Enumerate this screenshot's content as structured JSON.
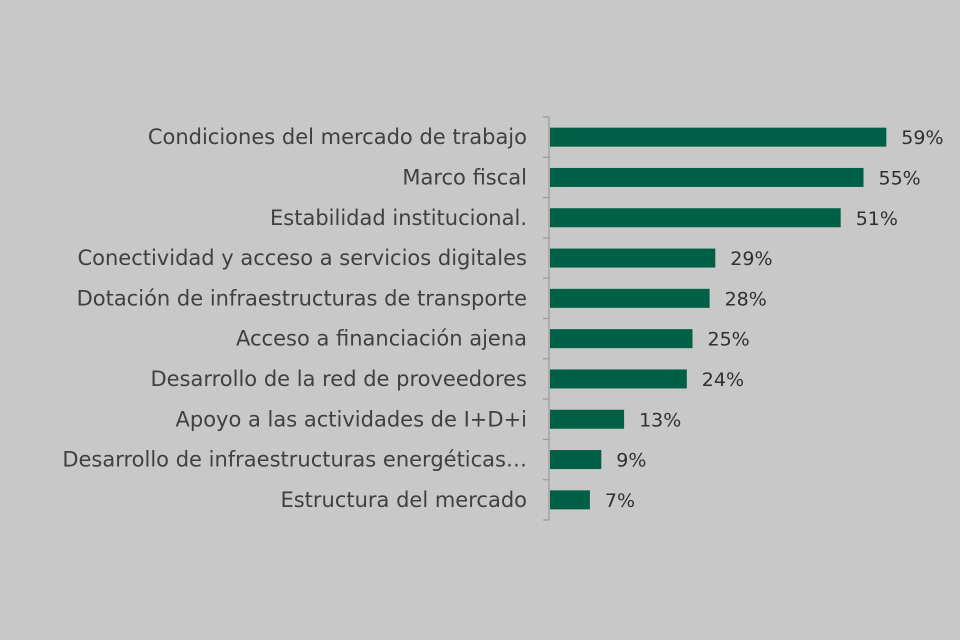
{
  "chart_data": {
    "type": "bar",
    "orientation": "horizontal",
    "categories": [
      "Condiciones del mercado de trabajo",
      "Marco fiscal",
      "Estabilidad institucional.",
      "Conectividad y acceso a servicios digitales",
      "Dotación de infraestructuras de transporte",
      "Acceso a financiación ajena",
      "Desarrollo de la red de proveedores",
      "Apoyo a las actividades de I+D+i",
      "Desarrollo de infraestructuras energéticas…",
      "Estructura del mercado"
    ],
    "values": [
      59,
      55,
      51,
      29,
      28,
      25,
      24,
      13,
      9,
      7
    ],
    "value_labels": [
      "59%",
      "55%",
      "51%",
      "29%",
      "28%",
      "25%",
      "24%",
      "13%",
      "9%",
      "7%"
    ],
    "unit": "%",
    "xlim": [
      0,
      60
    ],
    "grid": false,
    "legend": "none"
  },
  "colors": {
    "bar": "#006045",
    "background": "#c8c8c8",
    "axis": "#9a9a9a",
    "text": "#404040"
  }
}
